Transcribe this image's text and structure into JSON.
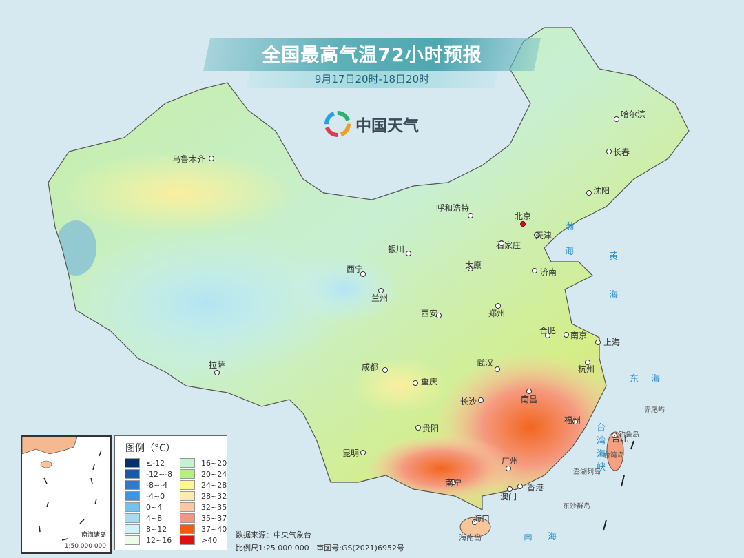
{
  "title": "全国最高气温72小时预报",
  "subtitle": "9月17日20时-18日20时",
  "logo": {
    "text": "中国天气",
    "icon": "china-weather-swirl-logo"
  },
  "cities": [
    {
      "name": "乌鲁木齐"
    },
    {
      "name": "呼和浩特"
    },
    {
      "name": "北京",
      "capital": true
    },
    {
      "name": "天津"
    },
    {
      "name": "石家庄"
    },
    {
      "name": "太原"
    },
    {
      "name": "济南"
    },
    {
      "name": "银川"
    },
    {
      "name": "西宁"
    },
    {
      "name": "兰州"
    },
    {
      "name": "西安"
    },
    {
      "name": "郑州"
    },
    {
      "name": "合肥"
    },
    {
      "name": "南京"
    },
    {
      "name": "上海"
    },
    {
      "name": "杭州"
    },
    {
      "name": "武汉"
    },
    {
      "name": "成都"
    },
    {
      "name": "重庆"
    },
    {
      "name": "长沙"
    },
    {
      "name": "南昌"
    },
    {
      "name": "福州"
    },
    {
      "name": "台北"
    },
    {
      "name": "贵阳"
    },
    {
      "name": "昆明"
    },
    {
      "name": "南宁"
    },
    {
      "name": "广州"
    },
    {
      "name": "香港"
    },
    {
      "name": "澳门"
    },
    {
      "name": "海口"
    },
    {
      "name": "拉萨"
    },
    {
      "name": "哈尔滨"
    },
    {
      "name": "长春"
    },
    {
      "name": "沈阳"
    }
  ],
  "seas": {
    "bohai": "渤海",
    "huanghai": "黄海",
    "donghai": "东海",
    "taiwan_strait": "台湾海峡",
    "nanhai": "南海"
  },
  "islands": {
    "diaoyu": "钓鱼岛",
    "chiwei": "赤尾屿",
    "taiwan": "台湾岛",
    "penghu": "澎湖列岛",
    "dongsha": "东沙群岛",
    "hainan": "海南岛"
  },
  "legend": {
    "title": "图例（°C）",
    "items": [
      {
        "label": "≤-12",
        "color": "#08306b"
      },
      {
        "label": "-12~-8",
        "color": "#1c5aa6"
      },
      {
        "label": "-8~-4",
        "color": "#2f78cc"
      },
      {
        "label": "-4~0",
        "color": "#3d95e4"
      },
      {
        "label": "0~4",
        "color": "#74c0f0"
      },
      {
        "label": "4~8",
        "color": "#a6dcf2"
      },
      {
        "label": "8~12",
        "color": "#cdf2fa"
      },
      {
        "label": "12~16",
        "color": "#eefaea"
      },
      {
        "label": "16~20",
        "color": "#c4f2d2"
      },
      {
        "label": "20~24",
        "color": "#b6ee82"
      },
      {
        "label": "24~28",
        "color": "#fbf98e"
      },
      {
        "label": "28~32",
        "color": "#fde9b4"
      },
      {
        "label": "32~35",
        "color": "#fcc7a2"
      },
      {
        "label": "35~37",
        "color": "#f59384"
      },
      {
        "label": "37~40",
        "color": "#f55a10"
      },
      {
        "label": ">40",
        "color": "#e00f10"
      }
    ]
  },
  "inset": {
    "label": "南海诸岛",
    "scale": "1:50 000 000"
  },
  "footer": {
    "source": "数据来源：中央气象台",
    "scale": "比例尺1:25 000 000",
    "review": "审图号:GS(2021)6952号"
  }
}
